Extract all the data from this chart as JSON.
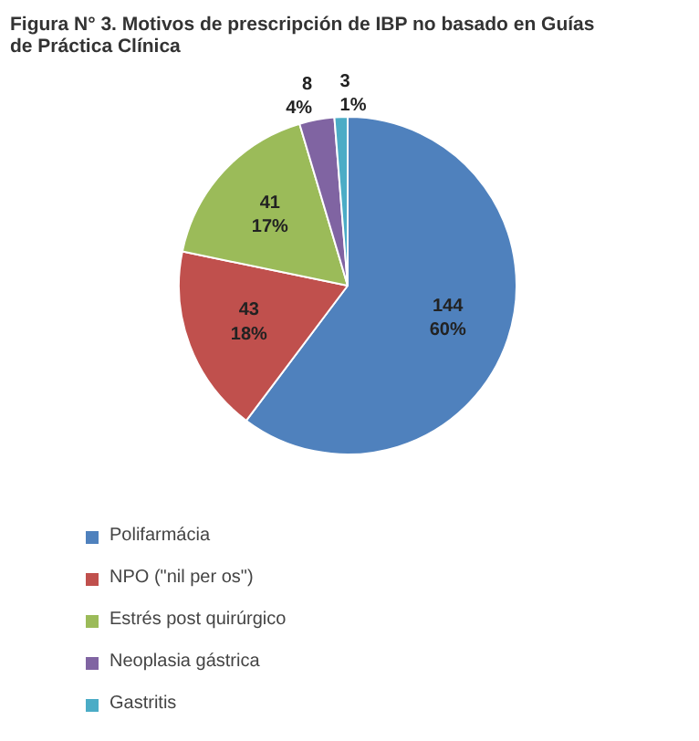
{
  "chart_data": {
    "type": "pie",
    "title": "Figura N° 3. Motivos de prescripción de IBP no basado en Guías de Práctica Clínica",
    "categories": [
      "Polifarmácia",
      "NPO (\"nil per os\")",
      "Estrés post quirúrgico",
      "Neoplasia gástrica",
      "Gastritis"
    ],
    "values": [
      144,
      43,
      41,
      8,
      3
    ],
    "value_labels": [
      "144\n60%",
      "43\n18%",
      "41\n17%",
      "8\n4%",
      "3\n1%"
    ],
    "colors": [
      "#4f81bd",
      "#c0504d",
      "#9bbb59",
      "#8064a2",
      "#4bacc6"
    ],
    "legend": "bottom"
  }
}
